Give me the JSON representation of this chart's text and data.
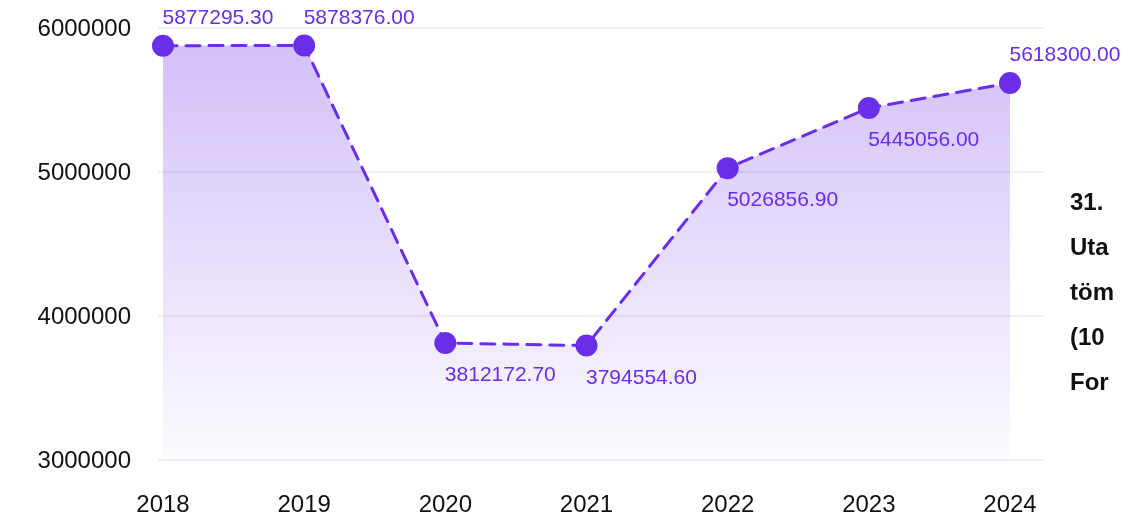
{
  "chart_data": {
    "type": "area",
    "categories": [
      "2018",
      "2019",
      "2020",
      "2021",
      "2022",
      "2023",
      "2024"
    ],
    "series": [
      {
        "color": "#6a2ee8",
        "values": [
          5877295.3,
          5878376.0,
          3812172.7,
          3794554.6,
          5026856.9,
          5445056.0,
          5618300.0
        ],
        "value_labels": [
          "5877295.30",
          "5878376.00",
          "3812172.70",
          "3794554.60",
          "5026856.90",
          "5445056.00",
          "5618300.00"
        ]
      }
    ],
    "ylim": [
      3000000,
      6000000
    ],
    "yticks": [
      3000000,
      4000000,
      5000000,
      6000000
    ],
    "grid": "y",
    "marker": "circle",
    "line_style": "dashed",
    "annotations": [
      "31.",
      "Uta",
      "töm",
      "(10",
      "For"
    ]
  }
}
